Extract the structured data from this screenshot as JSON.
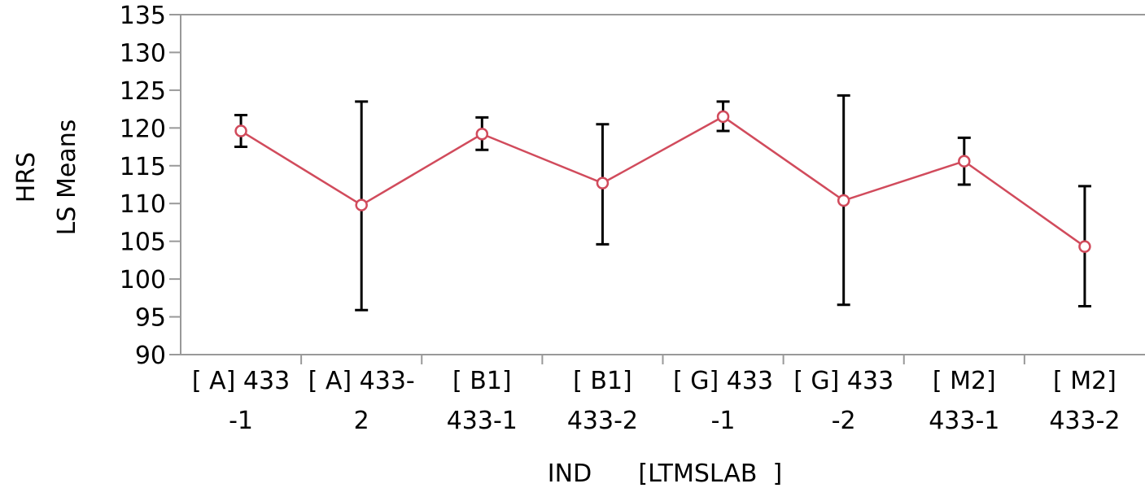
{
  "chart_data": {
    "type": "line",
    "title": "",
    "xlabel": "IND      [LTMSLAB  ]",
    "ylabel": [
      "HRS",
      "LS Means"
    ],
    "ylim": [
      90,
      135
    ],
    "yticks": [
      90,
      95,
      100,
      105,
      110,
      115,
      120,
      125,
      130,
      135
    ],
    "categories": [
      [
        "[ A] 433",
        "-1"
      ],
      [
        "[ A] 433-",
        "2"
      ],
      [
        "[ B1]",
        "433-1"
      ],
      [
        "[ B1]",
        "433-2"
      ],
      [
        "[ G] 433",
        "-1"
      ],
      [
        "[ G] 433",
        "-2"
      ],
      [
        "[ M2]",
        "433-1"
      ],
      [
        "[ M2]",
        "433-2"
      ]
    ],
    "series": [
      {
        "values": [
          119.6,
          109.8,
          119.2,
          112.7,
          121.5,
          110.4,
          115.6,
          104.3
        ],
        "lower": [
          117.5,
          95.9,
          117.1,
          104.6,
          119.6,
          96.6,
          112.5,
          96.4
        ],
        "upper": [
          121.7,
          123.5,
          121.4,
          120.5,
          123.5,
          124.3,
          118.7,
          112.3
        ],
        "color": "#d14b5c"
      }
    ],
    "error_bar_color": "#000000",
    "axis_color": "#999999",
    "grid": false
  }
}
